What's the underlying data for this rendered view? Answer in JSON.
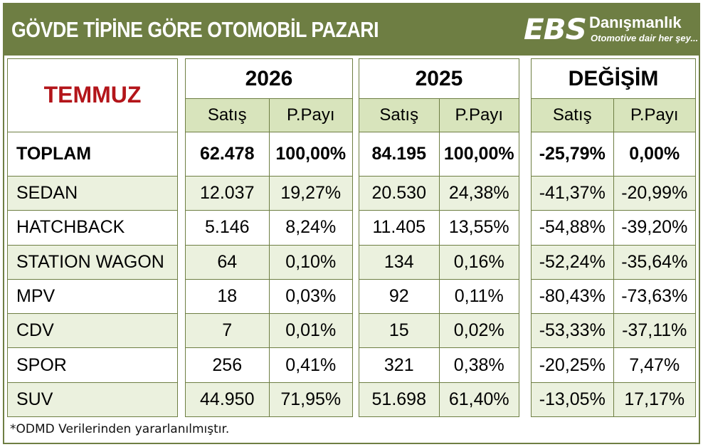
{
  "header": {
    "title": "GÖVDE TİPİNE GÖRE OTOMOBİL PAZARI",
    "logo_mark": "EBS",
    "logo_name": "Danışmanlık",
    "logo_tagline": "Otomotive dair her şey...",
    "accent_color": "#6e7e43"
  },
  "table": {
    "month_label": "TEMMUZ",
    "groups": [
      {
        "title": "2026",
        "sub": [
          "Satış",
          "P.Payı"
        ]
      },
      {
        "title": "2025",
        "sub": [
          "Satış",
          "P.Payı"
        ]
      },
      {
        "title": "DEĞİŞİM",
        "sub": [
          "Satış",
          "P.Payı"
        ]
      }
    ],
    "rows": [
      {
        "label": "TOPLAM",
        "cells": [
          "62.478",
          "100,00%",
          "84.195",
          "100,00%",
          "-25,79%",
          "0,00%"
        ]
      },
      {
        "label": "SEDAN",
        "cells": [
          "12.037",
          "19,27%",
          "20.530",
          "24,38%",
          "-41,37%",
          "-20,99%"
        ]
      },
      {
        "label": "HATCHBACK",
        "cells": [
          "5.146",
          "8,24%",
          "11.405",
          "13,55%",
          "-54,88%",
          "-39,20%"
        ]
      },
      {
        "label": "STATION WAGON",
        "cells": [
          "64",
          "0,10%",
          "134",
          "0,16%",
          "-52,24%",
          "-35,64%"
        ]
      },
      {
        "label": "MPV",
        "cells": [
          "18",
          "0,03%",
          "92",
          "0,11%",
          "-80,43%",
          "-73,63%"
        ]
      },
      {
        "label": "CDV",
        "cells": [
          "7",
          "0,01%",
          "15",
          "0,02%",
          "-53,33%",
          "-37,11%"
        ]
      },
      {
        "label": "SPOR",
        "cells": [
          "256",
          "0,41%",
          "321",
          "0,38%",
          "-20,25%",
          "7,47%"
        ]
      },
      {
        "label": "SUV",
        "cells": [
          "44.950",
          "71,95%",
          "51.698",
          "61,40%",
          "-13,05%",
          "17,17%"
        ]
      }
    ]
  },
  "footnote": "*ODMD Verilerinden yararlanılmıştır."
}
